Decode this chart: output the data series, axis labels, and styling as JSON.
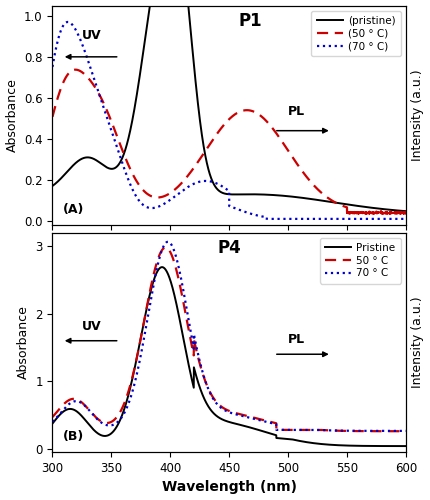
{
  "fig_width": 4.3,
  "fig_height": 5.0,
  "dpi": 100,
  "xlabel": "Wavelength (nm)",
  "ylabel_left": "Absorbance",
  "ylabel_right": "Intensity (a.u.)",
  "xlim": [
    300,
    600
  ],
  "panel_A": {
    "label": "P1",
    "ylim": [
      -0.02,
      1.05
    ],
    "yticks": [
      0.0,
      0.2,
      0.4,
      0.6,
      0.8,
      1.0
    ],
    "legend_labels": [
      "(pristine)",
      "(50 ° C)",
      "(70 ° C)"
    ]
  },
  "panel_B": {
    "label": "P4",
    "ylim": [
      -0.05,
      3.2
    ],
    "yticks": [
      0,
      1,
      2,
      3
    ],
    "legend_labels": [
      "Pristine",
      "50 ° C",
      "70 ° C"
    ]
  },
  "colors": {
    "pristine": "#000000",
    "50C": "#cc0000",
    "70C": "#0000cc"
  },
  "linestyles": {
    "pristine": "-",
    "50C": "--",
    "70C": ":"
  },
  "linewidths": {
    "pristine": 1.4,
    "50C": 1.6,
    "70C": 1.6
  }
}
